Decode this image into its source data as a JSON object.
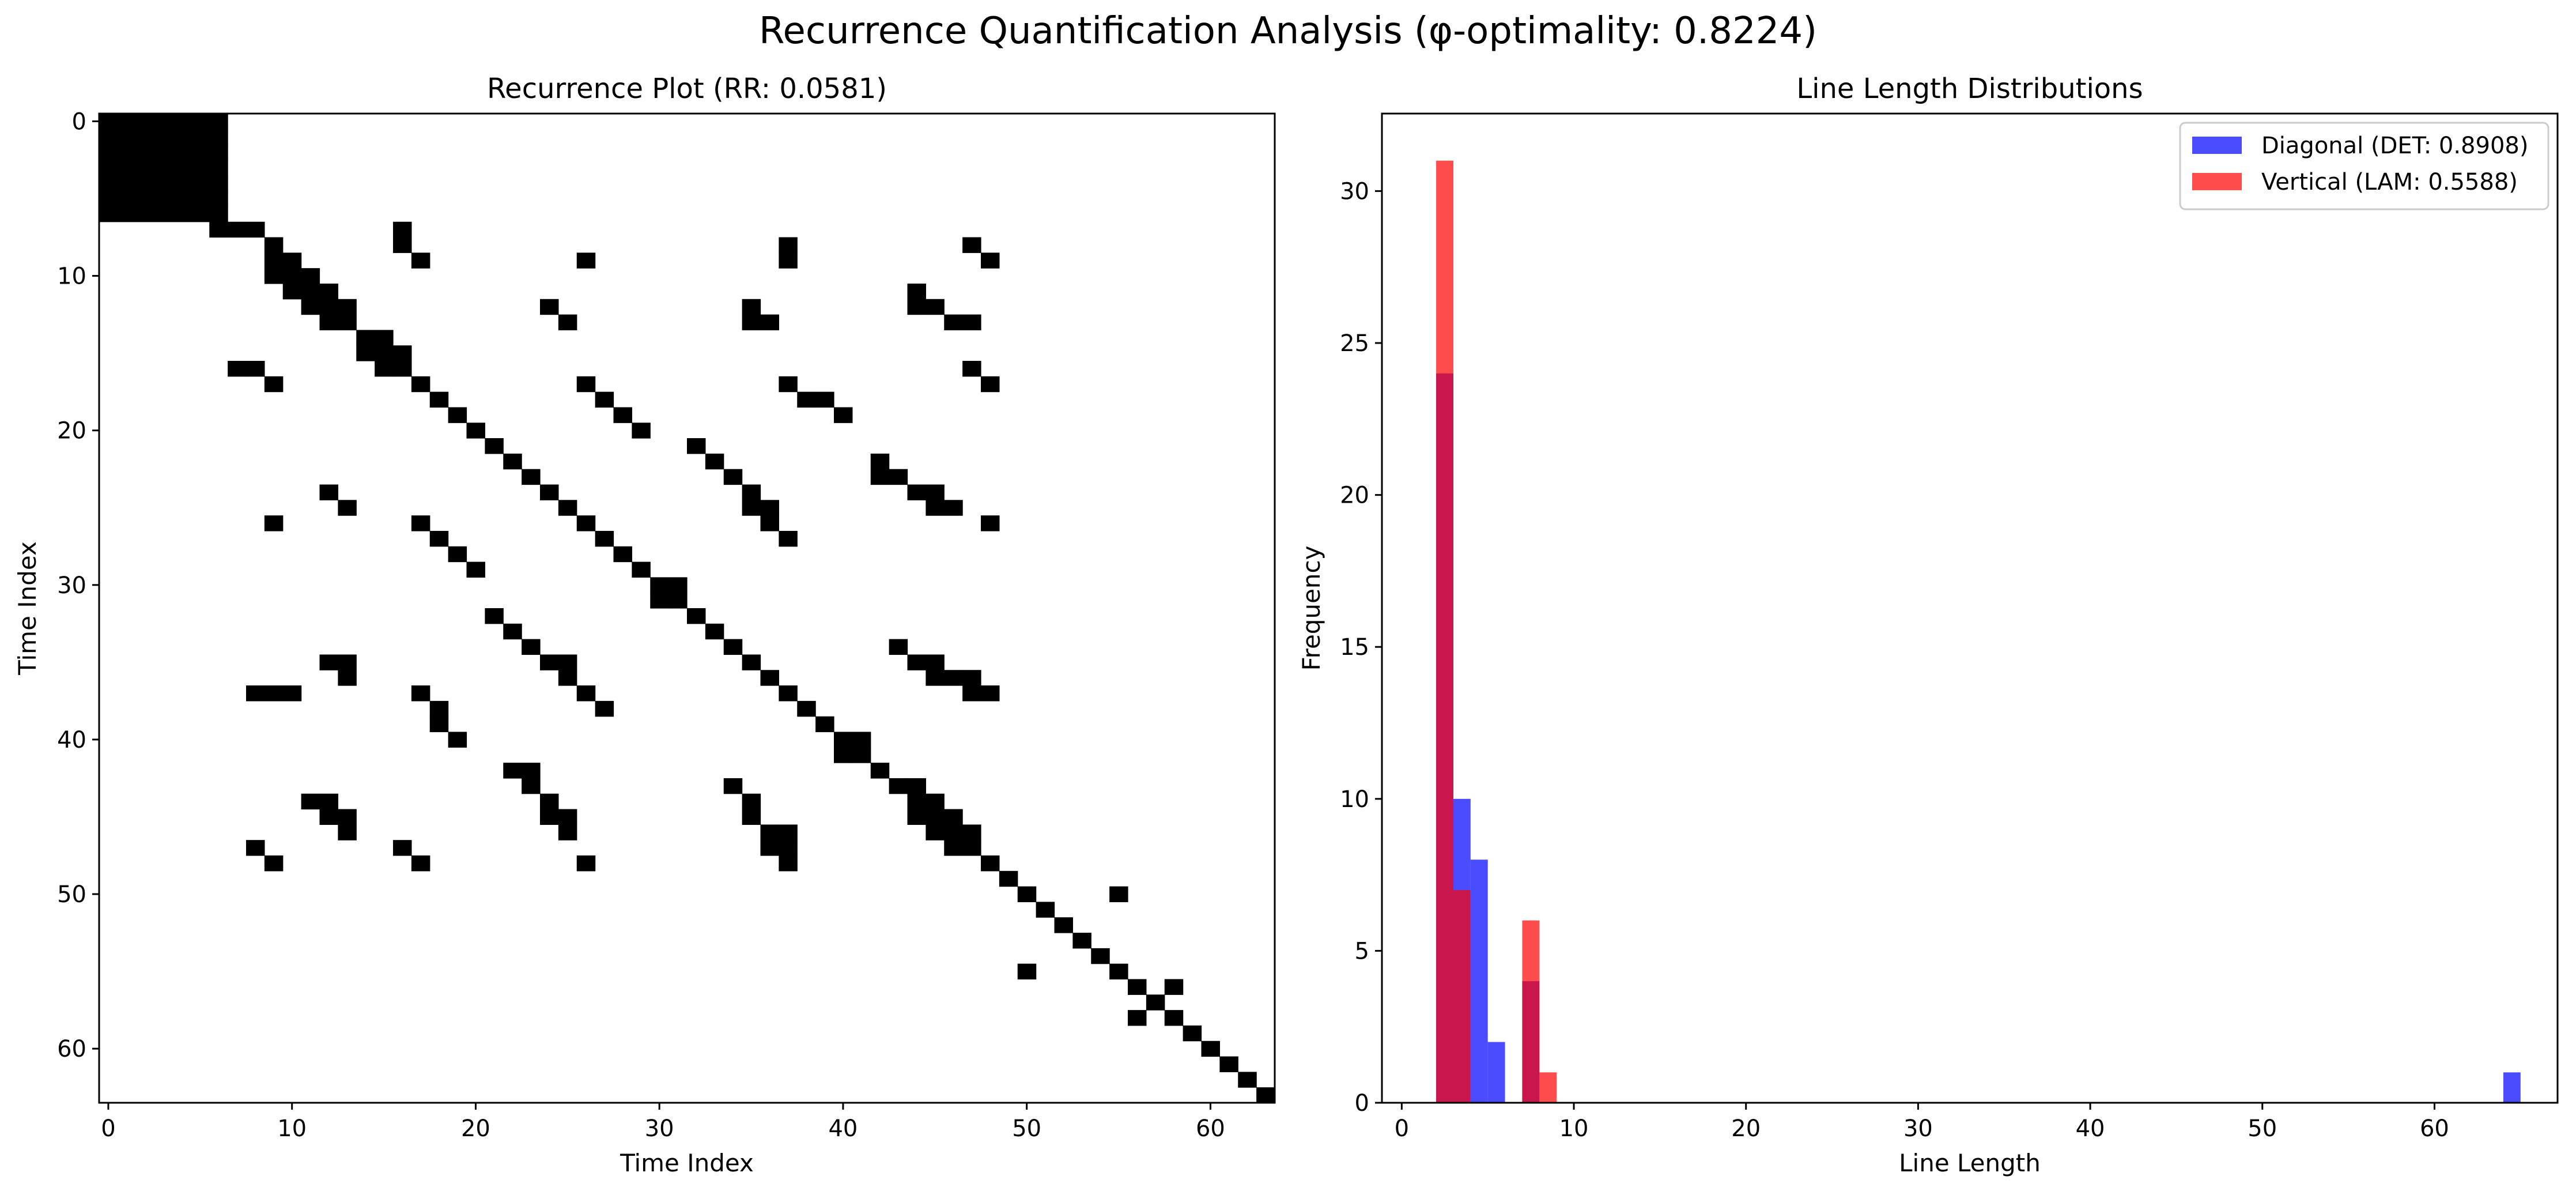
{
  "figure": {
    "suptitle": "Recurrence Quantification Analysis (φ-optimality: 0.8224)"
  },
  "chart_data": [
    {
      "type": "heatmap",
      "title": "Recurrence Plot (RR: 0.0581)",
      "xlabel": "Time Index",
      "ylabel": "Time Index",
      "size": 64,
      "xlim": [
        -0.5,
        63.5
      ],
      "ylim": [
        63.5,
        -0.5
      ],
      "xticks": [
        0,
        10,
        20,
        30,
        40,
        50,
        60
      ],
      "yticks": [
        0,
        10,
        20,
        30,
        40,
        50,
        60
      ],
      "colors": {
        "recurrent": "#000000",
        "non_recurrent": "#ffffff"
      },
      "filled_block": {
        "rows": [
          0,
          6
        ],
        "cols": [
          0,
          6
        ]
      },
      "recurrent_points": [
        [
          7,
          6
        ],
        [
          7,
          7
        ],
        [
          7,
          8
        ],
        [
          8,
          9
        ],
        [
          9,
          9
        ],
        [
          9,
          10
        ],
        [
          10,
          9
        ],
        [
          10,
          10
        ],
        [
          10,
          11
        ],
        [
          11,
          10
        ],
        [
          11,
          11
        ],
        [
          11,
          12
        ],
        [
          12,
          11
        ],
        [
          12,
          12
        ],
        [
          12,
          13
        ],
        [
          13,
          12
        ],
        [
          13,
          13
        ],
        [
          14,
          14
        ],
        [
          14,
          15
        ],
        [
          15,
          14
        ],
        [
          15,
          15
        ],
        [
          15,
          16
        ],
        [
          16,
          15
        ],
        [
          16,
          16
        ],
        [
          17,
          17
        ],
        [
          18,
          18
        ],
        [
          19,
          19
        ],
        [
          20,
          20
        ],
        [
          21,
          21
        ],
        [
          22,
          22
        ],
        [
          23,
          23
        ],
        [
          24,
          24
        ],
        [
          25,
          25
        ],
        [
          26,
          26
        ],
        [
          27,
          27
        ],
        [
          28,
          28
        ],
        [
          29,
          29
        ],
        [
          30,
          30
        ],
        [
          30,
          31
        ],
        [
          31,
          30
        ],
        [
          31,
          31
        ],
        [
          32,
          32
        ],
        [
          33,
          33
        ],
        [
          34,
          34
        ],
        [
          35,
          35
        ],
        [
          36,
          36
        ],
        [
          37,
          37
        ],
        [
          38,
          38
        ],
        [
          39,
          39
        ],
        [
          40,
          40
        ],
        [
          40,
          41
        ],
        [
          41,
          40
        ],
        [
          41,
          41
        ],
        [
          42,
          42
        ],
        [
          43,
          43
        ],
        [
          44,
          44
        ],
        [
          45,
          45
        ],
        [
          46,
          46
        ],
        [
          47,
          47
        ],
        [
          48,
          48
        ],
        [
          49,
          49
        ],
        [
          50,
          50
        ],
        [
          51,
          51
        ],
        [
          52,
          52
        ],
        [
          53,
          53
        ],
        [
          54,
          54
        ],
        [
          55,
          55
        ],
        [
          56,
          56
        ],
        [
          57,
          57
        ],
        [
          58,
          58
        ],
        [
          59,
          59
        ],
        [
          60,
          60
        ],
        [
          61,
          61
        ],
        [
          62,
          62
        ],
        [
          63,
          63
        ],
        [
          7,
          16
        ],
        [
          8,
          16
        ],
        [
          9,
          17
        ],
        [
          8,
          37
        ],
        [
          9,
          37
        ],
        [
          8,
          47
        ],
        [
          9,
          48
        ],
        [
          9,
          26
        ],
        [
          12,
          24
        ],
        [
          13,
          25
        ],
        [
          12,
          35
        ],
        [
          13,
          35
        ],
        [
          13,
          36
        ],
        [
          11,
          44
        ],
        [
          12,
          44
        ],
        [
          12,
          45
        ],
        [
          13,
          46
        ],
        [
          13,
          47
        ],
        [
          16,
          7
        ],
        [
          16,
          8
        ],
        [
          17,
          9
        ],
        [
          16,
          47
        ],
        [
          17,
          48
        ],
        [
          17,
          26
        ],
        [
          18,
          27
        ],
        [
          19,
          28
        ],
        [
          20,
          29
        ],
        [
          17,
          37
        ],
        [
          18,
          38
        ],
        [
          18,
          39
        ],
        [
          19,
          40
        ],
        [
          21,
          32
        ],
        [
          22,
          33
        ],
        [
          23,
          34
        ],
        [
          24,
          35
        ],
        [
          25,
          35
        ],
        [
          25,
          36
        ],
        [
          22,
          42
        ],
        [
          23,
          42
        ],
        [
          23,
          43
        ],
        [
          24,
          44
        ],
        [
          24,
          45
        ],
        [
          25,
          45
        ],
        [
          25,
          46
        ],
        [
          26,
          9
        ],
        [
          24,
          12
        ],
        [
          25,
          13
        ],
        [
          26,
          17
        ],
        [
          27,
          18
        ],
        [
          28,
          19
        ],
        [
          29,
          20
        ],
        [
          26,
          36
        ],
        [
          27,
          37
        ],
        [
          26,
          48
        ],
        [
          32,
          21
        ],
        [
          33,
          22
        ],
        [
          34,
          23
        ],
        [
          35,
          24
        ],
        [
          35,
          25
        ],
        [
          36,
          25
        ],
        [
          37,
          26
        ],
        [
          38,
          27
        ],
        [
          35,
          12
        ],
        [
          35,
          13
        ],
        [
          36,
          13
        ],
        [
          37,
          8
        ],
        [
          37,
          9
        ],
        [
          37,
          10
        ],
        [
          37,
          17
        ],
        [
          38,
          18
        ],
        [
          39,
          18
        ],
        [
          40,
          19
        ],
        [
          34,
          43
        ],
        [
          35,
          44
        ],
        [
          35,
          45
        ],
        [
          36,
          45
        ],
        [
          36,
          46
        ],
        [
          36,
          47
        ],
        [
          37,
          47
        ],
        [
          37,
          48
        ],
        [
          42,
          22
        ],
        [
          42,
          23
        ],
        [
          43,
          23
        ],
        [
          44,
          24
        ],
        [
          45,
          24
        ],
        [
          45,
          25
        ],
        [
          46,
          25
        ],
        [
          44,
          11
        ],
        [
          44,
          12
        ],
        [
          45,
          12
        ],
        [
          45,
          13
        ],
        [
          46,
          13
        ],
        [
          47,
          8
        ],
        [
          48,
          9
        ],
        [
          47,
          16
        ],
        [
          48,
          17
        ],
        [
          48,
          26
        ],
        [
          43,
          34
        ],
        [
          44,
          35
        ],
        [
          45,
          35
        ],
        [
          46,
          36
        ],
        [
          46,
          37
        ],
        [
          47,
          36
        ],
        [
          47,
          37
        ],
        [
          48,
          37
        ],
        [
          43,
          44
        ],
        [
          44,
          44
        ],
        [
          44,
          45
        ],
        [
          45,
          44
        ],
        [
          45,
          45
        ],
        [
          45,
          46
        ],
        [
          46,
          45
        ],
        [
          46,
          46
        ],
        [
          46,
          47
        ],
        [
          47,
          46
        ],
        [
          47,
          47
        ],
        [
          50,
          55
        ],
        [
          55,
          50
        ],
        [
          56,
          58
        ],
        [
          57,
          57
        ],
        [
          58,
          56
        ],
        [
          58,
          58
        ],
        [
          59,
          59
        ]
      ]
    },
    {
      "type": "bar",
      "title": "Line Length Distributions",
      "xlabel": "Line Length",
      "ylabel": "Frequency",
      "xlim": [
        -1.15,
        67.15
      ],
      "ylim": [
        0,
        32.55
      ],
      "xticks": [
        0,
        10,
        20,
        30,
        40,
        50,
        60
      ],
      "yticks": [
        0,
        5,
        10,
        15,
        20,
        25,
        30
      ],
      "legend_position": "upper right",
      "bin_width": 1,
      "series": [
        {
          "name": "Diagonal (DET: 0.8908)",
          "color": "#0000ff",
          "alpha": 0.7,
          "bins": [
            [
              2,
              24
            ],
            [
              3,
              10
            ],
            [
              4,
              8
            ],
            [
              5,
              2
            ],
            [
              7,
              4
            ],
            [
              64,
              1
            ]
          ]
        },
        {
          "name": "Vertical (LAM: 0.5588)",
          "color": "#ff0000",
          "alpha": 0.7,
          "bins": [
            [
              2,
              31
            ],
            [
              3,
              7
            ],
            [
              7,
              6
            ],
            [
              8,
              1
            ]
          ]
        }
      ]
    }
  ]
}
